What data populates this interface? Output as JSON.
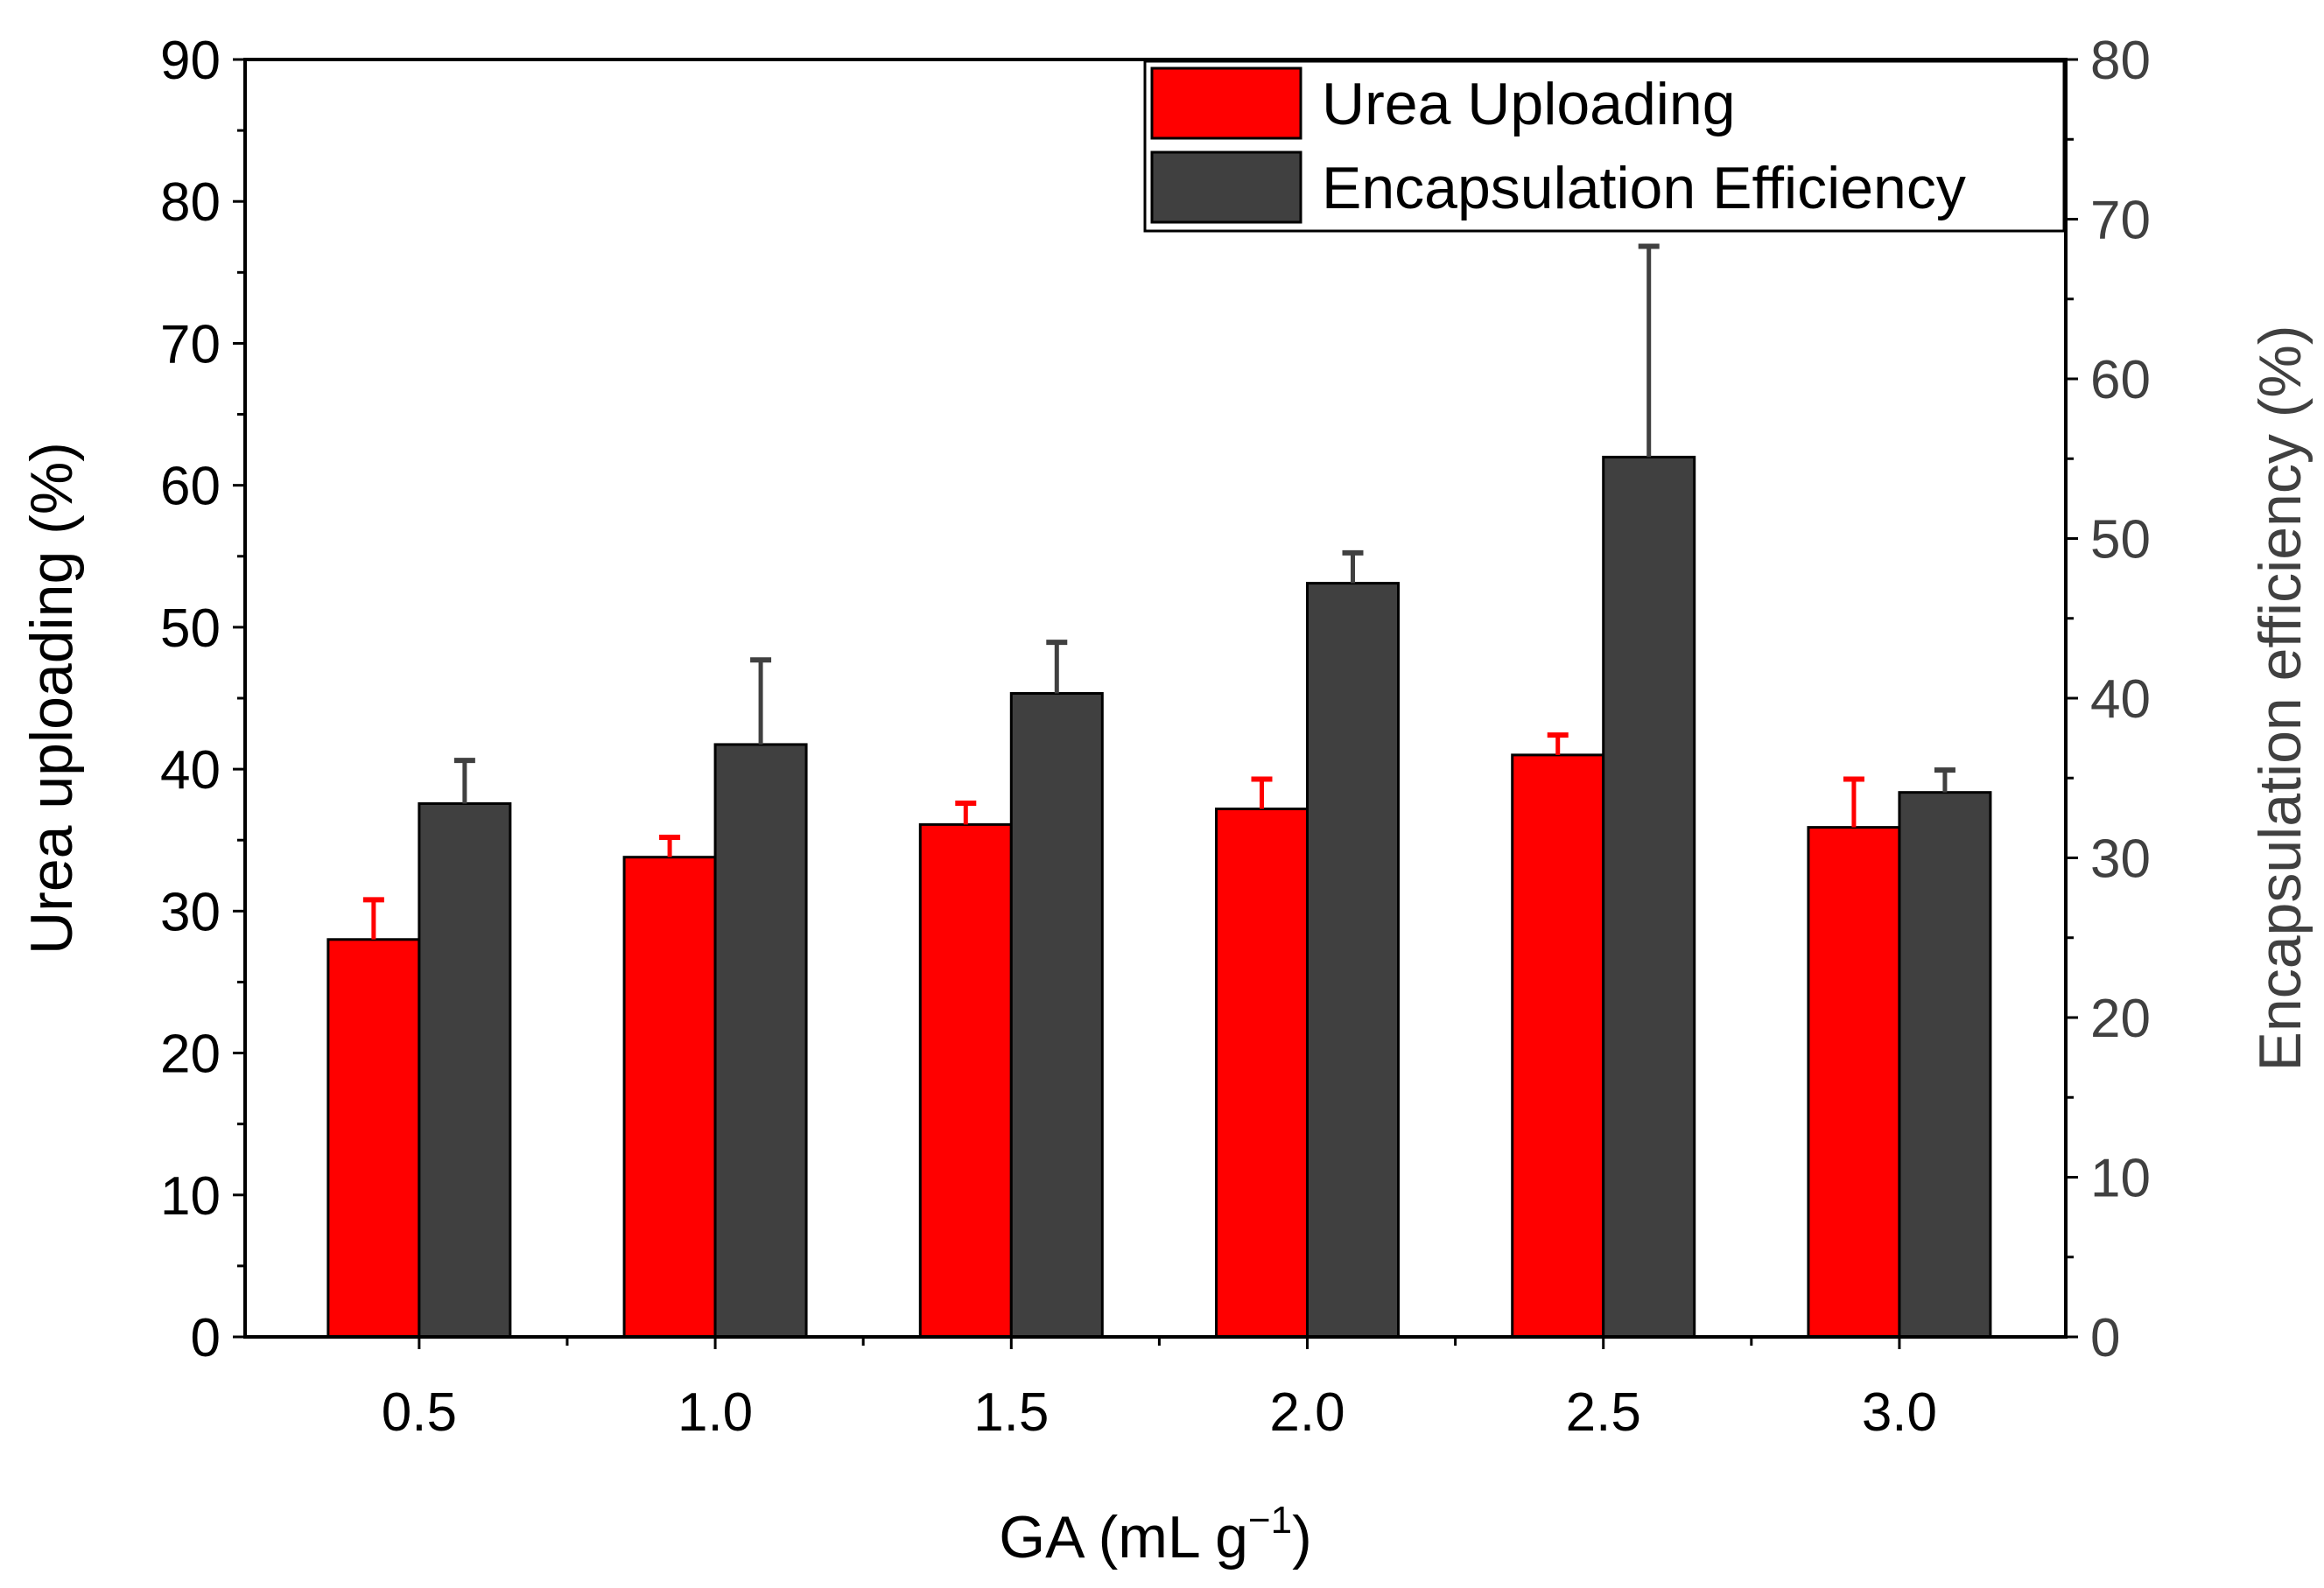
{
  "chart_data": {
    "type": "bar",
    "title": "",
    "xlabel": "GA (mL g",
    "xlabel_superscript": "−1",
    "xlabel_suffix": ")",
    "ylabel": "Urea uploading (%)",
    "y2label": "Encapsulation efficiency (%)",
    "categories": [
      "0.5",
      "1.0",
      "1.5",
      "2.0",
      "2.5",
      "3.0"
    ],
    "ylim": [
      0,
      90
    ],
    "y2lim": [
      0,
      80
    ],
    "yticks": [
      "0",
      "10",
      "20",
      "30",
      "40",
      "50",
      "60",
      "70",
      "80",
      "90"
    ],
    "y2ticks": [
      "0",
      "10",
      "20",
      "30",
      "40",
      "50",
      "60",
      "70",
      "80"
    ],
    "series": [
      {
        "name": "Urea Uploading",
        "axis": "left",
        "color": "#ff0000",
        "values": [
          28.0,
          33.8,
          36.1,
          37.2,
          41.0,
          35.9
        ],
        "errors": [
          2.8,
          1.4,
          1.5,
          2.1,
          1.4,
          3.4
        ]
      },
      {
        "name": "Encapsulation Efficiency",
        "axis": "right",
        "color": "#404040",
        "values": [
          33.4,
          37.1,
          40.3,
          47.2,
          55.1,
          34.1
        ],
        "errors": [
          2.7,
          5.3,
          3.2,
          1.9,
          13.2,
          1.4
        ]
      }
    ],
    "legend": {
      "position": "top-right",
      "entries": [
        "Urea Uploading",
        "Encapsulation Efficiency"
      ]
    },
    "grid": false
  }
}
